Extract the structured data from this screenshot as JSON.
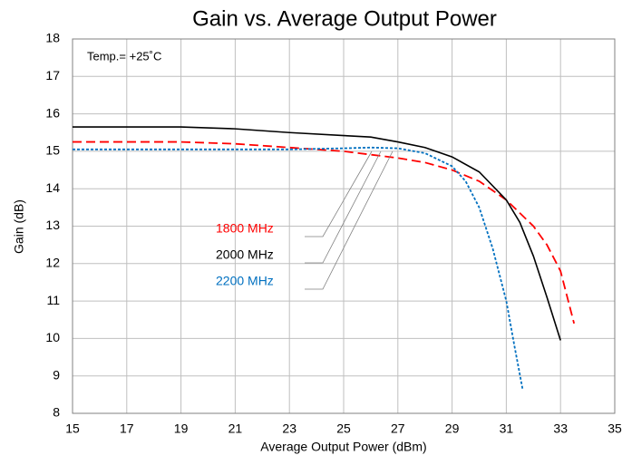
{
  "chart_data": {
    "type": "line",
    "title": "Gain vs. Average Output Power",
    "x_label": "Average Output Power (dBm)",
    "y_label": "Gain (dB)",
    "annotation": "Temp.= +25˚C",
    "xlim": [
      15,
      35
    ],
    "xticks": [
      15,
      17,
      19,
      21,
      23,
      25,
      27,
      29,
      31,
      33,
      35
    ],
    "ylim": [
      8,
      18
    ],
    "yticks": [
      8,
      9,
      10,
      11,
      12,
      13,
      14,
      15,
      16,
      17,
      18
    ],
    "grid": true,
    "series": [
      {
        "name": "1800 MHz",
        "color": "#ff0000",
        "style": "dashed",
        "x": [
          15,
          17,
          19,
          21,
          23,
          25,
          27,
          28,
          29,
          30,
          31,
          32,
          32.5,
          33,
          33.5
        ],
        "values": [
          15.25,
          15.25,
          15.25,
          15.2,
          15.1,
          15.0,
          14.82,
          14.7,
          14.5,
          14.2,
          13.7,
          13.0,
          12.5,
          11.8,
          10.4
        ]
      },
      {
        "name": "2000 MHz",
        "color": "#000000",
        "style": "solid",
        "x": [
          15,
          17,
          19,
          21,
          23,
          25,
          26,
          27,
          28,
          29,
          30,
          31,
          31.5,
          32,
          32.5,
          33
        ],
        "values": [
          15.65,
          15.65,
          15.65,
          15.6,
          15.5,
          15.42,
          15.38,
          15.25,
          15.1,
          14.85,
          14.45,
          13.7,
          13.1,
          12.2,
          11.1,
          9.95
        ]
      },
      {
        "name": "2200 MHz",
        "color": "#0070c0",
        "style": "dotted",
        "x": [
          15,
          17,
          19,
          21,
          23,
          25,
          26,
          27,
          28,
          29,
          29.5,
          30,
          30.5,
          31,
          31.3,
          31.6
        ],
        "values": [
          15.05,
          15.05,
          15.05,
          15.05,
          15.05,
          15.08,
          15.1,
          15.08,
          14.95,
          14.6,
          14.2,
          13.5,
          12.4,
          11.0,
          9.8,
          8.65
        ]
      }
    ]
  }
}
